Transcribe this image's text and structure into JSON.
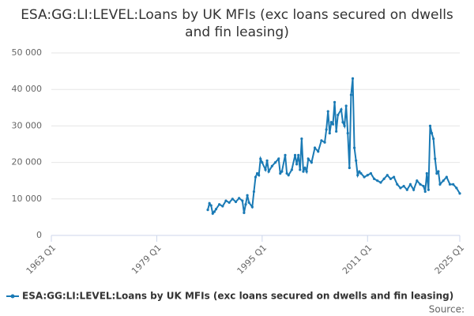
{
  "chart_data": {
    "type": "line",
    "title": "ESA:GG:LI:LEVEL:Loans by UK MFIs (exc loans secured on dwells and fin leasing)",
    "source": "Source:",
    "x": [
      1986.75,
      1987,
      1987.25,
      1987.5,
      1987.75,
      1988,
      1988.5,
      1989,
      1989.5,
      1990,
      1990.5,
      1991,
      1991.5,
      1992,
      1992.25,
      1992.5,
      1992.75,
      1993,
      1993.5,
      1993.75,
      1994,
      1994.25,
      1994.5,
      1994.75,
      1995,
      1995.5,
      1995.75,
      1996,
      1996.5,
      1997,
      1997.5,
      1997.75,
      1998,
      1998.5,
      1998.75,
      1999,
      1999.5,
      2000,
      2000.25,
      2000.5,
      2000.75,
      2001,
      2001.25,
      2001.5,
      2001.75,
      2002,
      2002.5,
      2003,
      2003.5,
      2004,
      2004.5,
      2004.75,
      2005,
      2005.25,
      2005.5,
      2005.75,
      2006,
      2006.25,
      2006.5,
      2007,
      2007.25,
      2007.5,
      2007.75,
      2008,
      2008.25,
      2008.5,
      2008.75,
      2009,
      2009.25,
      2009.5,
      2009.75,
      2010,
      2010.5,
      2011,
      2011.5,
      2012,
      2012.5,
      2013,
      2013.5,
      2014,
      2014.5,
      2015,
      2015.5,
      2016,
      2016.5,
      2017,
      2017.5,
      2018,
      2018.5,
      2019,
      2019.5,
      2019.75,
      2020,
      2020.25,
      2020.5,
      2020.75,
      2021,
      2021.25,
      2021.5,
      2021.75,
      2022,
      2022.5,
      2023,
      2023.5,
      2024,
      2024.5,
      2025
    ],
    "series": [
      {
        "name": "ESA:GG:LI:LEVEL:Loans by UK MFIs (exc loans secured on dwells and fin leasing)",
        "color": "#1a7ab5",
        "values": [
          7000,
          8800,
          8200,
          6000,
          6500,
          7200,
          8500,
          8000,
          9500,
          9000,
          10000,
          9200,
          10200,
          9500,
          6200,
          8500,
          11000,
          9000,
          7800,
          12000,
          16000,
          17000,
          16500,
          21000,
          20000,
          18000,
          20500,
          17500,
          19000,
          20000,
          21000,
          17000,
          17500,
          22000,
          17000,
          16500,
          18000,
          22000,
          19500,
          22000,
          18000,
          26500,
          17500,
          18500,
          17500,
          21000,
          20000,
          24000,
          23000,
          26000,
          25500,
          29000,
          34000,
          28000,
          31000,
          30500,
          36500,
          28500,
          33000,
          34500,
          31000,
          30000,
          35500,
          28000,
          18500,
          38500,
          43000,
          24000,
          20500,
          16500,
          17500,
          17000,
          16000,
          16500,
          17000,
          15500,
          15000,
          14500,
          15500,
          16500,
          15500,
          16000,
          14000,
          13000,
          13500,
          12500,
          14000,
          12500,
          15000,
          14000,
          13500,
          12000,
          17000,
          12500,
          30000,
          28000,
          26500,
          21000,
          17000,
          17500,
          14000,
          15000,
          16000,
          14000,
          14000,
          13000,
          11500
        ]
      }
    ],
    "xlim": [
      1963,
      2025
    ],
    "xticks": [
      {
        "value": 1963,
        "label": "1963 Q1"
      },
      {
        "value": 1979,
        "label": "1979 Q1"
      },
      {
        "value": 1995,
        "label": "1995 Q1"
      },
      {
        "value": 2011,
        "label": "2011 Q1"
      },
      {
        "value": 2025,
        "label": "2025 Q1"
      }
    ],
    "ylim": [
      0,
      50000
    ],
    "yticks": [
      0,
      {
        "value": 10000,
        "label": "10 000"
      },
      {
        "value": 20000,
        "label": "20 000"
      },
      {
        "value": 30000,
        "label": "30 000"
      },
      {
        "value": 40000,
        "label": "40 000"
      },
      {
        "value": 50000,
        "label": "50 000"
      }
    ],
    "grid": true
  }
}
